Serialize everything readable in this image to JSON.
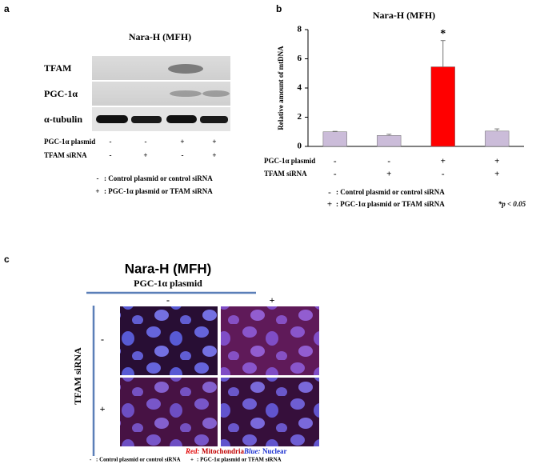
{
  "panel_a": {
    "label": "a",
    "title": "Nara-H (MFH)",
    "blots": [
      "TFAM",
      "PGC-1α",
      "α-tubulin"
    ],
    "conditions": [
      {
        "label": "PGC-1α plasmid",
        "signs": [
          "-",
          "-",
          "+",
          "+"
        ]
      },
      {
        "label": "TFAM siRNA",
        "signs": [
          "-",
          "+",
          "-",
          "+"
        ]
      }
    ],
    "legend": [
      {
        "sign": "-",
        "text": ": Control plasmid or control siRNA"
      },
      {
        "sign": "+",
        "text": ": PGC-1α plasmid or TFAM siRNA"
      }
    ]
  },
  "chart_data": {
    "type": "bar",
    "panel_label": "b",
    "title": "Nara-H (MFH)",
    "y_label": "Relative amount of mtDNA",
    "values": [
      1.0,
      0.75,
      5.45,
      1.05
    ],
    "errors": [
      0.03,
      0.08,
      1.8,
      0.15
    ],
    "colors": [
      "#cbbcd9",
      "#cbbcd9",
      "#ff0000",
      "#cbbcd9"
    ],
    "annotations": [
      null,
      null,
      "*",
      null
    ],
    "ylim": [
      0,
      8
    ],
    "yticks": [
      0,
      2,
      4,
      6,
      8
    ],
    "conditions": [
      {
        "label": "PGC-1α plasmid",
        "signs": [
          "-",
          "-",
          "+",
          "+"
        ]
      },
      {
        "label": "TFAM siRNA",
        "signs": [
          "-",
          "+",
          "-",
          "+"
        ]
      }
    ],
    "legend": [
      {
        "sign": "-",
        "text": ": Control plasmid or control siRNA"
      },
      {
        "sign": "+",
        "text": ": PGC-1α plasmid or TFAM siRNA"
      }
    ],
    "footnote": "*p < 0.05"
  },
  "panel_c": {
    "label": "c",
    "title": "Nara-H (MFH)",
    "column_header": "PGC-1α plasmid",
    "column_signs": [
      "-",
      "+"
    ],
    "row_header": "TFAM siRNA",
    "row_signs": [
      "-",
      "+"
    ],
    "stain_red_label": "Red:",
    "stain_red": "Mitochondria",
    "stain_blue_label": "Blue:",
    "stain_blue": "Nuclear",
    "legend": [
      {
        "sign": "-",
        "text": ": Control plasmid or control siRNA"
      },
      {
        "sign": "+",
        "text": ": PGC-1α plasmid or TFAM siRNA"
      }
    ]
  }
}
